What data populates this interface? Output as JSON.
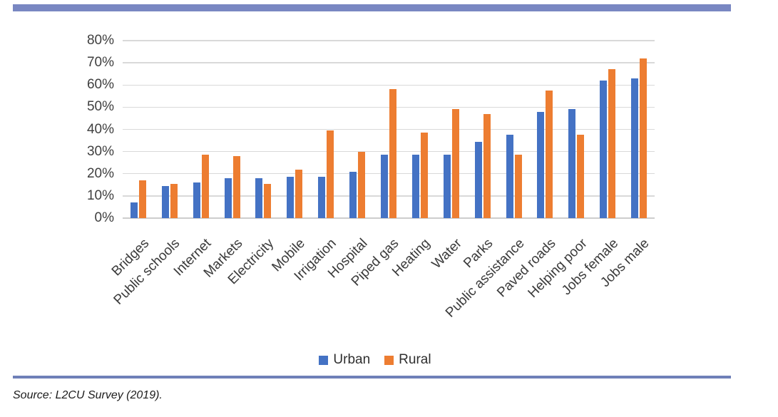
{
  "page": {
    "source_text": "Source: L2CU Survey (2019)."
  },
  "colors": {
    "accent_band": "#7987C2",
    "separator_line": "#6F80B8",
    "grid": "#D9D9D9",
    "axis_line": "#CDCDCD",
    "urban": "#4472C4",
    "rural": "#ED7D31"
  },
  "chart_data": {
    "type": "bar",
    "title": "",
    "xlabel": "",
    "ylabel": "",
    "categories": [
      "Bridges",
      "Public schools",
      "Internet",
      "Markets",
      "Electricity",
      "Mobile",
      "Irrigation",
      "Hospital",
      "Piped gas",
      "Heating",
      "Water",
      "Parks",
      "Public assistance",
      "Paved roads",
      "Helping poor",
      "Jobs female",
      "Jobs male"
    ],
    "series": [
      {
        "name": "Urban",
        "color": "#4472C4",
        "values": [
          7,
          14.5,
          16,
          18,
          18,
          18.5,
          18.5,
          21,
          28.5,
          28.5,
          28.5,
          34.5,
          37.5,
          48,
          49,
          62,
          63
        ]
      },
      {
        "name": "Rural",
        "color": "#ED7D31",
        "values": [
          17,
          15.5,
          28.5,
          28,
          15.5,
          22,
          39.5,
          30,
          58,
          38.5,
          49,
          47,
          28.5,
          57.5,
          37.5,
          67,
          72
        ]
      }
    ],
    "ylim": [
      0,
      80
    ],
    "y_tick_step": 10,
    "y_tick_labels": [
      "0%",
      "10%",
      "20%",
      "30%",
      "40%",
      "50%",
      "60%",
      "70%",
      "80%"
    ],
    "grid": true,
    "legend_position": "bottom"
  }
}
